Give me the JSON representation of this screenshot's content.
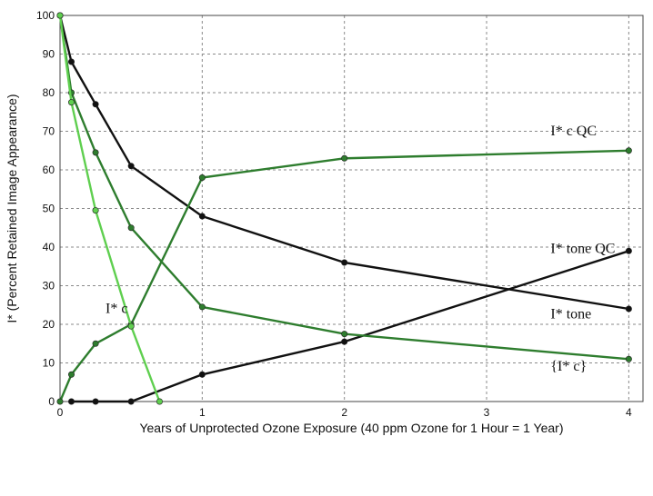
{
  "chart_data": {
    "type": "line",
    "xlabel": "Years of Unprotected Ozone Exposure (40 ppm Ozone for 1 Hour = 1 Year)",
    "ylabel": "I* (Percent Retained Image Appearance)",
    "xlim": [
      0,
      4.1
    ],
    "ylim": [
      0,
      100
    ],
    "x_ticks": [
      0,
      1,
      2,
      3,
      4
    ],
    "y_ticks": [
      0,
      10,
      20,
      30,
      40,
      50,
      60,
      70,
      80,
      90,
      100
    ],
    "grid": true,
    "colors": {
      "black": "#111111",
      "dark_green": "#2e7d2e",
      "light_green": "#5fcf4f"
    },
    "series": [
      {
        "color_key": "black",
        "marker": true,
        "points": [
          [
            0,
            100
          ],
          [
            0.08,
            88
          ],
          [
            0.25,
            77
          ],
          [
            0.5,
            61
          ],
          [
            1,
            48
          ],
          [
            2,
            36
          ],
          [
            4,
            24
          ]
        ]
      },
      {
        "color_key": "black",
        "marker": true,
        "points": [
          [
            0.08,
            0
          ],
          [
            0.25,
            0
          ],
          [
            0.5,
            0
          ],
          [
            1,
            7
          ],
          [
            2,
            15.5
          ],
          [
            4,
            39
          ]
        ]
      },
      {
        "color_key": "dark_green",
        "marker": true,
        "points": [
          [
            0,
            0
          ],
          [
            0.08,
            7
          ],
          [
            0.25,
            15
          ],
          [
            0.5,
            20
          ],
          [
            1,
            58
          ],
          [
            2,
            63
          ],
          [
            4,
            65
          ]
        ]
      },
      {
        "color_key": "dark_green",
        "marker": true,
        "points": [
          [
            0,
            100
          ],
          [
            0.08,
            80
          ],
          [
            0.25,
            64.5
          ],
          [
            0.5,
            45
          ],
          [
            1,
            24.5
          ],
          [
            2,
            17.5
          ],
          [
            4,
            11
          ]
        ]
      },
      {
        "color_key": "light_green",
        "marker": true,
        "points": [
          [
            0,
            100
          ],
          [
            0.08,
            77.5
          ],
          [
            0.25,
            49.5
          ],
          [
            0.5,
            19.5
          ],
          [
            0.7,
            0
          ]
        ]
      }
    ],
    "annotations": [
      {
        "text": "I* c QC",
        "x": 3.45,
        "y": 69
      },
      {
        "text": "I* tone QC",
        "x": 3.45,
        "y": 38.5
      },
      {
        "text": "I* tone",
        "x": 3.45,
        "y": 21.5
      },
      {
        "text": "{I* c}",
        "x": 3.45,
        "y": 8
      },
      {
        "text": "I* c",
        "x": 0.32,
        "y": 23
      }
    ]
  }
}
